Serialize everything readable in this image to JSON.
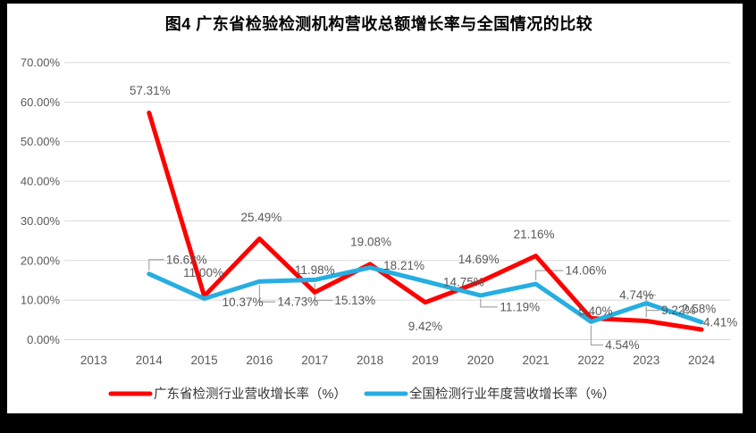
{
  "frame": {
    "background": "#000000",
    "canvas_color": "#ffffff"
  },
  "chart_data": {
    "type": "line",
    "title": "图4  广东省检验检测机构营收总额增长率与全国情况的比较",
    "categories": [
      "2013",
      "2014",
      "2015",
      "2016",
      "2017",
      "2018",
      "2019",
      "2020",
      "2021",
      "2022",
      "2023",
      "2024"
    ],
    "ylim": [
      0,
      70
    ],
    "grid": true,
    "legend_position": "bottom",
    "y_ticks": [
      {
        "value": 0,
        "label": "0.00%"
      },
      {
        "value": 10,
        "label": "10.00%"
      },
      {
        "value": 20,
        "label": "20.00%"
      },
      {
        "value": 30,
        "label": "30.00%"
      },
      {
        "value": 40,
        "label": "40.00%"
      },
      {
        "value": 50,
        "label": "50.00%"
      },
      {
        "value": 60,
        "label": "60.00%"
      },
      {
        "value": 70,
        "label": "70.00%"
      }
    ],
    "colors": {
      "grid": "#d9d9d9",
      "tick_label": "#595959",
      "data_label": "#595959",
      "leader": "#a6a6a6",
      "title": "#000000",
      "legend_text": "#333333"
    },
    "series": [
      {
        "name": "广东省检测行业营收增长率（%）",
        "color": "#fe0000",
        "points": [
          {
            "year": "2014",
            "value": 57.31,
            "label": "57.31%",
            "dx": 1,
            "dy": -25,
            "leader": false
          },
          {
            "year": "2015",
            "value": 11.0,
            "label": "11.00%",
            "dx": -1,
            "dy": -26,
            "leader": false
          },
          {
            "year": "2016",
            "value": 25.49,
            "label": "25.49%",
            "dx": 2,
            "dy": -24,
            "leader": false
          },
          {
            "year": "2017",
            "value": 11.98,
            "label": "11.98%",
            "dx": 0,
            "dy": -25,
            "leader": false
          },
          {
            "year": "2018",
            "value": 19.08,
            "label": "19.08%",
            "dx": 1,
            "dy": -25,
            "leader": false
          },
          {
            "year": "2019",
            "value": 9.42,
            "label": "9.42%",
            "dx": 0,
            "dy": 27,
            "leader": false
          },
          {
            "year": "2020",
            "value": 14.69,
            "label": "14.69%",
            "dx": -2,
            "dy": -25,
            "leader": false
          },
          {
            "year": "2021",
            "value": 21.16,
            "label": "21.16%",
            "dx": -2,
            "dy": -24,
            "leader": false
          },
          {
            "year": "2022",
            "value": 5.4,
            "label": "5.40%",
            "dx": 5,
            "dy": -8,
            "leader": false
          },
          {
            "year": "2023",
            "value": 4.74,
            "label": "4.74%",
            "dx": -11,
            "dy": -29,
            "leader": true
          },
          {
            "year": "2024",
            "value": 2.58,
            "label": "2.58%",
            "dx": -3,
            "dy": -23,
            "leader": false
          }
        ]
      },
      {
        "name": "全国检测行业年度营收增长率（%）",
        "color": "#27aee0",
        "points": [
          {
            "year": "2014",
            "value": 16.62,
            "label": "16.62%",
            "dx": 42,
            "dy": -16,
            "leader": true
          },
          {
            "year": "2015",
            "value": 10.37,
            "label": "10.37%",
            "dx": 43,
            "dy": 4,
            "leader": false
          },
          {
            "year": "2016",
            "value": 14.73,
            "label": "14.73%",
            "dx": 43,
            "dy": 23,
            "leader": true
          },
          {
            "year": "2017",
            "value": 15.13,
            "label": "15.13%",
            "dx": 45,
            "dy": 23,
            "leader": true
          },
          {
            "year": "2018",
            "value": 18.21,
            "label": "18.21%",
            "dx": 38,
            "dy": -2,
            "leader": false
          },
          {
            "year": "2019",
            "value": 14.75,
            "label": "14.75%",
            "dx": 43,
            "dy": 1,
            "leader": false
          },
          {
            "year": "2020",
            "value": 11.19,
            "label": "11.19%",
            "dx": 44,
            "dy": 13,
            "leader": true
          },
          {
            "year": "2021",
            "value": 14.06,
            "label": "14.06%",
            "dx": 56,
            "dy": -15,
            "leader": true
          },
          {
            "year": "2022",
            "value": 4.54,
            "label": "4.54%",
            "dx": 35,
            "dy": 26,
            "leader": true
          },
          {
            "year": "2023",
            "value": 9.22,
            "label": "9.22%",
            "dx": 36,
            "dy": 8,
            "leader": true
          },
          {
            "year": "2024",
            "value": 4.41,
            "label": "4.41%",
            "dx": 21,
            "dy": 0,
            "leader": false
          }
        ]
      }
    ]
  }
}
